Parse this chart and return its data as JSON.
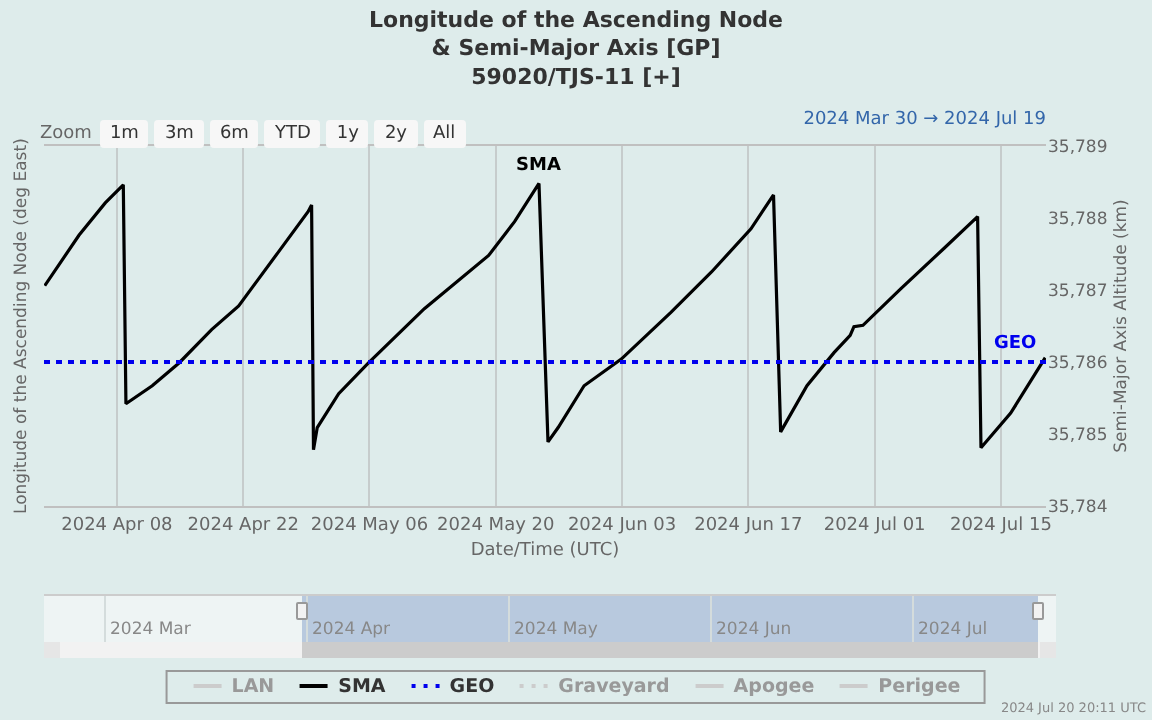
{
  "chart_data": [
    {
      "type": "line",
      "title": "Longitude of the Ascending Node\n& Semi-Major Axis [GP]\n59020/TJS-11 [+]",
      "xlabel": "Date/Time (UTC)",
      "ylabel": "Longitude of the Ascending Node (deg East)",
      "y2label": "Semi-Major Axis Altitude (km)",
      "xlim": [
        "2024-03-30T22:00",
        "2024-07-20T00:00"
      ],
      "xticks": [
        {
          "value": "2024-04-08",
          "label": "2024 Apr 08"
        },
        {
          "value": "2024-04-22",
          "label": "2024 Apr 22"
        },
        {
          "value": "2024-05-06",
          "label": "2024 May 06"
        },
        {
          "value": "2024-05-20",
          "label": "2024 May 20"
        },
        {
          "value": "2024-06-03",
          "label": "2024 Jun 03"
        },
        {
          "value": "2024-06-17",
          "label": "2024 Jun 17"
        },
        {
          "value": "2024-07-01",
          "label": "2024 Jul 01"
        },
        {
          "value": "2024-07-15",
          "label": "2024 Jul 15"
        }
      ],
      "y2lim": [
        35784,
        35789
      ],
      "y2ticks": [
        {
          "value": 35784,
          "label": "35,784"
        },
        {
          "value": 35785,
          "label": "35,785"
        },
        {
          "value": 35786,
          "label": "35,786"
        },
        {
          "value": 35787,
          "label": "35,787"
        },
        {
          "value": 35788,
          "label": "35,788"
        },
        {
          "value": 35789,
          "label": "35,789"
        }
      ],
      "grid": "x",
      "legend": "bottom",
      "marker": "none",
      "series": [
        {
          "name": "LAN",
          "color": "#cccccc",
          "line_style": "solid"
        },
        {
          "name": "SMA",
          "color": "#000000",
          "line_style": "solid",
          "axis": "y2",
          "x": [
            "2024-03-31T00:00",
            "2024-04-03T19:00",
            "2024-04-06T17:00",
            "2024-04-08T17:00",
            "2024-04-09T00:00",
            "2024-04-11T22:00",
            "2024-04-14T22:00",
            "2024-04-18T12:00",
            "2024-04-21T12:00",
            "2024-04-25T22:00",
            "2024-04-29T05:00",
            "2024-04-29T14:00",
            "2024-04-29T19:00",
            "2024-04-30T05:00",
            "2024-05-02T14:00",
            "2024-05-05T22:00",
            "2024-05-12T02:00",
            "2024-05-19T05:00",
            "2024-05-22T02:00",
            "2024-05-24T19:00",
            "2024-05-25T19:00",
            "2024-05-26T22:00",
            "2024-05-29T19:00",
            "2024-06-02T22:00",
            "2024-06-08T10:00",
            "2024-06-12T22:00",
            "2024-06-17T07:00",
            "2024-06-19T19:00",
            "2024-06-20T14:00",
            "2024-06-23T12:00",
            "2024-06-26T12:00",
            "2024-06-28T07:00",
            "2024-06-28T17:00",
            "2024-06-29T17:00",
            "2024-07-03T22:00",
            "2024-07-08T17:00",
            "2024-07-12T10:00",
            "2024-07-12T19:00",
            "2024-07-16T02:00",
            "2024-07-19T22:00"
          ],
          "values": [
            35787.06,
            35787.76,
            35788.21,
            35788.46,
            35785.42,
            35785.67,
            35785.99,
            35786.45,
            35786.78,
            35787.53,
            35788.09,
            35788.18,
            35784.78,
            35785.09,
            35785.56,
            35785.99,
            35786.74,
            35787.48,
            35787.95,
            35788.48,
            35784.89,
            35785.09,
            35785.67,
            35786.04,
            35786.69,
            35787.25,
            35787.85,
            35788.32,
            35785.03,
            35785.67,
            35786.13,
            35786.37,
            35786.49,
            35786.51,
            35787.02,
            35787.58,
            35788.02,
            35784.81,
            35785.29,
            35786.06
          ]
        },
        {
          "name": "GEO",
          "color": "#0000ee",
          "line_style": "dotted",
          "axis": "y2",
          "x": [
            "2024-03-30T22:00",
            "2024-07-20T00:00"
          ],
          "values": [
            35786,
            35786
          ]
        },
        {
          "name": "Graveyard",
          "color": "#cccccc",
          "line_style": "dotted"
        },
        {
          "name": "Apogee",
          "color": "#cccccc",
          "line_style": "solid"
        },
        {
          "name": "Perigee",
          "color": "#cccccc",
          "line_style": "solid"
        }
      ],
      "annotations": [
        "Zoom",
        "1m",
        "3m",
        "6m",
        "YTD",
        "1y",
        "2y",
        "All",
        "2024 Mar 30 → 2024 Jul 19",
        "2024 Jul 20 20:11 UTC"
      ]
    },
    {
      "type": "other",
      "annotations": [
        "2024 Mar",
        "2024 Apr",
        "2024 May",
        "2024 Jun",
        "2024 Jul"
      ]
    }
  ]
}
